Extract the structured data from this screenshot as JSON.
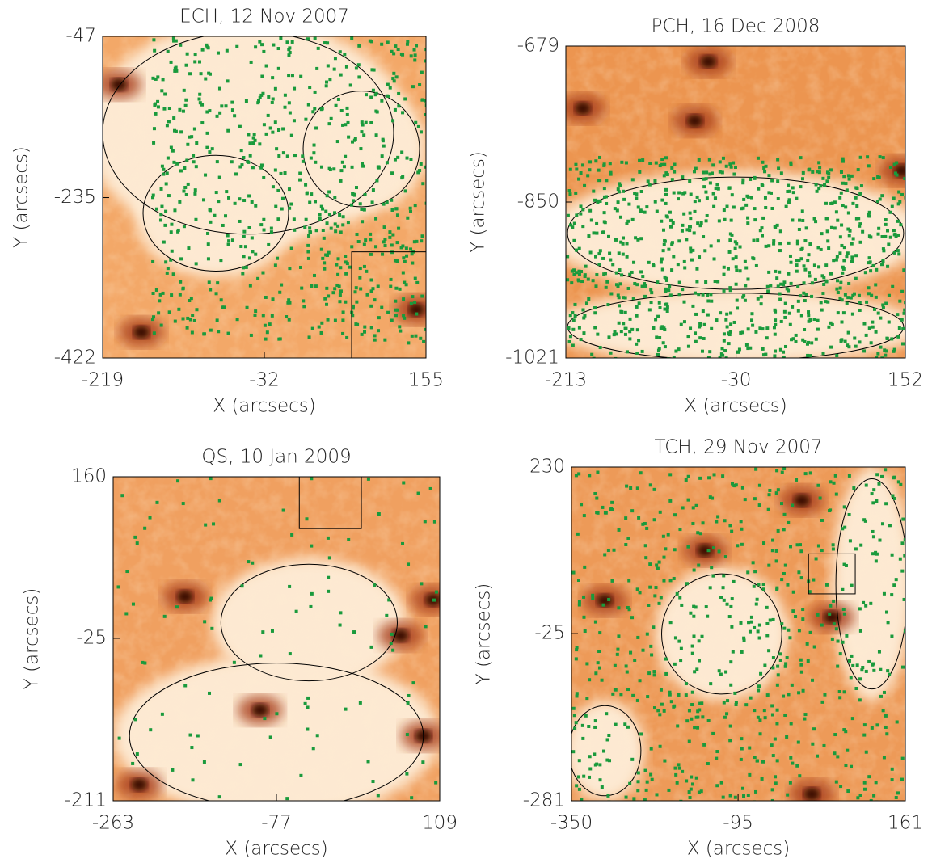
{
  "chart_data": [
    {
      "type": "image",
      "title": "ECH, 12 Nov 2007",
      "x_label": "X (arcsecs)",
      "y_label": "Y (arcsecs)",
      "xlim": [
        -219,
        155
      ],
      "xticks": [
        -219,
        -32,
        155
      ],
      "ylim": [
        -422,
        -47
      ],
      "yticks": [
        -422,
        -235,
        -47
      ]
    },
    {
      "type": "image",
      "title": "PCH, 16 Dec 2008",
      "x_label": "X (arcsecs)",
      "y_label": "Y (arcsecs)",
      "xlim": [
        -213,
        152
      ],
      "xticks": [
        -213,
        -30,
        152
      ],
      "ylim": [
        -1021,
        -679
      ],
      "yticks": [
        -1021,
        -850,
        -679
      ]
    },
    {
      "type": "image",
      "title": "QS, 10 Jan 2009",
      "x_label": "X (arcsecs)",
      "y_label": "Y (arcsecs)",
      "xlim": [
        -263,
        109
      ],
      "xticks": [
        -263,
        -77,
        109
      ],
      "ylim": [
        -211,
        160
      ],
      "yticks": [
        -211,
        -25,
        160
      ]
    },
    {
      "type": "image",
      "title": "TCH, 29 Nov 2007",
      "x_label": "X (arcsecs)",
      "y_label": "Y (arcsecs)",
      "xlim": [
        -350,
        161
      ],
      "xticks": [
        -350,
        -95,
        161
      ],
      "ylim": [
        -281,
        230
      ],
      "yticks": [
        -281,
        -25,
        230
      ]
    }
  ]
}
